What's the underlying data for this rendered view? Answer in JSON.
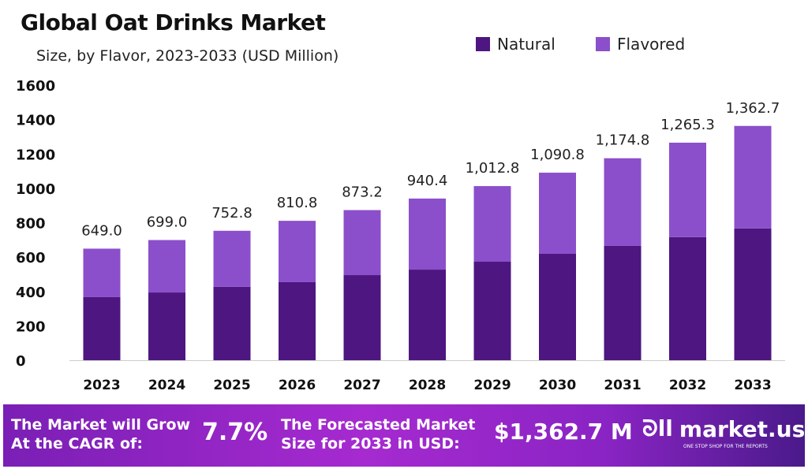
{
  "chart_data": {
    "type": "bar",
    "stacked": true,
    "title": "Global Oat Drinks Market",
    "subtitle": "Size, by Flavor, 2023-2033 (USD Million)",
    "categories": [
      "2023",
      "2024",
      "2025",
      "2026",
      "2027",
      "2028",
      "2029",
      "2030",
      "2031",
      "2032",
      "2033"
    ],
    "series": [
      {
        "name": "Natural",
        "color": "#4d1680",
        "values": [
          367,
          394,
          427,
          454,
          495,
          527,
          573,
          619,
          665,
          716,
          766
        ]
      },
      {
        "name": "Flavored",
        "color": "#8b4fcb",
        "values": [
          282.0,
          305.0,
          325.8,
          356.8,
          378.2,
          413.4,
          439.8,
          471.8,
          509.8,
          549.3,
          596.7
        ]
      }
    ],
    "totals": [
      "649.0",
      "699.0",
      "752.8",
      "810.8",
      "873.2",
      "940.4",
      "1,012.8",
      "1,090.8",
      "1,174.8",
      "1,265.3",
      "1,362.7"
    ],
    "ylim": [
      0,
      1600
    ],
    "yticks": [
      "0",
      "200",
      "400",
      "600",
      "800",
      "1000",
      "1200",
      "1400",
      "1600"
    ],
    "grid": false,
    "legend": "top-right"
  },
  "footer": {
    "cagr_label_1": "The Market will Grow",
    "cagr_label_2": "At the CAGR of:",
    "cagr_value": "7.7%",
    "forecast_label_1": "The Forecasted Market",
    "forecast_label_2": "Size for 2033 in USD:",
    "forecast_value": "$1,362.7 M",
    "logo_text": "market.us",
    "logo_tagline": "ONE STOP SHOP FOR THE REPORTS"
  }
}
